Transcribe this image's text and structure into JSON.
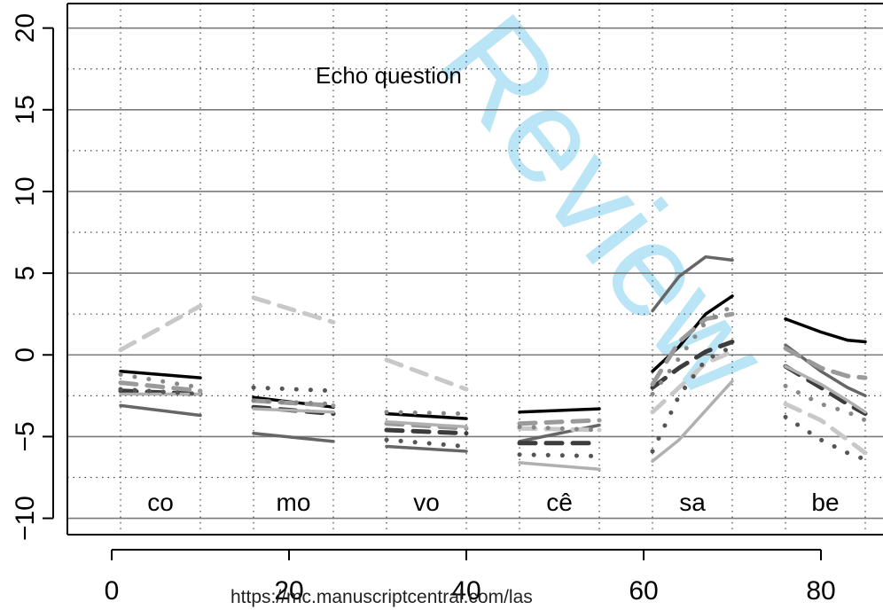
{
  "chart_data": {
    "type": "line",
    "title": "Echo question",
    "xlabel": "",
    "ylabel": "",
    "xlim": [
      -5,
      87
    ],
    "ylim": [
      -11,
      21.5
    ],
    "x_ticks": [
      0,
      20,
      40,
      60,
      80
    ],
    "y_ticks": [
      -10,
      -5,
      0,
      5,
      10,
      15,
      20
    ],
    "grid": true,
    "segment_labels": [
      {
        "text": "co",
        "x": 5.5
      },
      {
        "text": "mo",
        "x": 20.5
      },
      {
        "text": "vo",
        "x": 35.5
      },
      {
        "text": "cê",
        "x": 50.5
      },
      {
        "text": "sa",
        "x": 65.5
      },
      {
        "text": "be",
        "x": 80.5
      }
    ],
    "segment_label_y": -9,
    "segment_dividers_x": [
      1,
      10,
      16,
      25,
      31,
      40,
      46,
      55,
      61,
      70,
      76,
      85
    ],
    "series": [
      {
        "color": "#000000",
        "style": "solid",
        "segments": [
          [
            [
              1,
              -1.0
            ],
            [
              10,
              -1.4
            ]
          ],
          [
            [
              16,
              -2.6
            ],
            [
              25,
              -3.2
            ]
          ],
          [
            [
              31,
              -3.6
            ],
            [
              40,
              -3.9
            ]
          ],
          [
            [
              46,
              -3.5
            ],
            [
              55,
              -3.3
            ]
          ],
          [
            [
              61,
              -1.0
            ],
            [
              64,
              0.5
            ],
            [
              67,
              2.5
            ],
            [
              70,
              3.6
            ]
          ],
          [
            [
              76,
              2.2
            ],
            [
              80,
              1.4
            ],
            [
              83,
              0.9
            ],
            [
              85,
              0.8
            ]
          ]
        ]
      },
      {
        "color": "#666666",
        "style": "solid",
        "segments": [
          [
            [
              1,
              -3.1
            ],
            [
              10,
              -3.7
            ]
          ],
          [
            [
              16,
              -4.8
            ],
            [
              25,
              -5.3
            ]
          ],
          [
            [
              31,
              -5.6
            ],
            [
              40,
              -5.9
            ]
          ],
          [
            [
              46,
              -5.3
            ],
            [
              55,
              -4.3
            ]
          ],
          [
            [
              61,
              2.7
            ],
            [
              64,
              4.8
            ],
            [
              67,
              6.0
            ],
            [
              70,
              5.8
            ]
          ],
          [
            [
              76,
              0.6
            ],
            [
              80,
              -1.0
            ],
            [
              83,
              -2.0
            ],
            [
              85,
              -2.5
            ]
          ]
        ]
      },
      {
        "color": "#c8c8c8",
        "style": "dashed",
        "segments": [
          [
            [
              1,
              0.3
            ],
            [
              10,
              3.0
            ]
          ],
          [
            [
              16,
              3.5
            ],
            [
              25,
              2.0
            ]
          ],
          [
            [
              31,
              -0.3
            ],
            [
              40,
              -2.1
            ]
          ],
          [
            [
              46,
              -4.5
            ],
            [
              55,
              -4.6
            ]
          ],
          [
            [
              61,
              -3.5
            ],
            [
              64,
              -2.0
            ],
            [
              67,
              -0.5
            ],
            [
              70,
              0.2
            ]
          ],
          [
            [
              76,
              -3.0
            ],
            [
              80,
              -4.0
            ],
            [
              83,
              -5.2
            ],
            [
              85,
              -6.0
            ]
          ]
        ]
      },
      {
        "color": "#3c3c3c",
        "style": "dashed",
        "segments": [
          [
            [
              1,
              -2.2
            ],
            [
              10,
              -2.4
            ]
          ],
          [
            [
              16,
              -3.2
            ],
            [
              25,
              -3.6
            ]
          ],
          [
            [
              31,
              -4.6
            ],
            [
              40,
              -4.8
            ]
          ],
          [
            [
              46,
              -5.4
            ],
            [
              55,
              -5.4
            ]
          ],
          [
            [
              61,
              -2.0
            ],
            [
              64,
              -0.8
            ],
            [
              67,
              0.2
            ],
            [
              70,
              0.8
            ]
          ],
          [
            [
              76,
              -0.7
            ],
            [
              80,
              -2.0
            ],
            [
              83,
              -3.0
            ],
            [
              85,
              -3.6
            ]
          ]
        ]
      },
      {
        "color": "#9a9a9a",
        "style": "dashed",
        "segments": [
          [
            [
              1,
              -1.7
            ],
            [
              10,
              -2.2
            ]
          ],
          [
            [
              16,
              -2.8
            ],
            [
              25,
              -3.1
            ]
          ],
          [
            [
              31,
              -4.2
            ],
            [
              40,
              -4.5
            ]
          ],
          [
            [
              46,
              -4.2
            ],
            [
              55,
              -4.0
            ]
          ],
          [
            [
              61,
              -1.8
            ],
            [
              64,
              0.8
            ],
            [
              67,
              2.2
            ],
            [
              70,
              2.5
            ]
          ],
          [
            [
              76,
              0.4
            ],
            [
              80,
              -0.8
            ],
            [
              83,
              -1.3
            ],
            [
              85,
              -1.4
            ]
          ]
        ]
      },
      {
        "color": "#b0b0b0",
        "style": "solid",
        "segments": [
          [
            [
              1,
              -2.4
            ],
            [
              10,
              -2.4
            ]
          ],
          [
            [
              16,
              -3.3
            ],
            [
              25,
              -3.5
            ]
          ],
          [
            [
              31,
              -4.1
            ],
            [
              40,
              -4.4
            ]
          ],
          [
            [
              46,
              -6.6
            ],
            [
              55,
              -7.0
            ]
          ],
          [
            [
              61,
              -6.5
            ],
            [
              64,
              -5.2
            ],
            [
              67,
              -3.4
            ],
            [
              70,
              -1.6
            ]
          ],
          [
            [
              76,
              -0.7
            ],
            [
              80,
              -1.8
            ],
            [
              83,
              -2.8
            ],
            [
              85,
              -3.5
            ]
          ]
        ]
      },
      {
        "color": "#555555",
        "style": "dotted",
        "segments": [
          [
            [
              1,
              -2.1
            ],
            [
              10,
              -2.4
            ]
          ],
          [
            [
              16,
              -2.0
            ],
            [
              25,
              -2.2
            ]
          ],
          [
            [
              31,
              -5.2
            ],
            [
              40,
              -5.6
            ]
          ],
          [
            [
              46,
              -6.1
            ],
            [
              55,
              -6.2
            ]
          ],
          [
            [
              61,
              -5.9
            ],
            [
              64,
              -2.5
            ],
            [
              67,
              -0.3
            ],
            [
              70,
              0.5
            ]
          ],
          [
            [
              76,
              -3.8
            ],
            [
              80,
              -5.2
            ],
            [
              83,
              -6.0
            ],
            [
              85,
              -6.4
            ]
          ]
        ]
      },
      {
        "color": "#888888",
        "style": "dotted",
        "segments": [
          [
            [
              1,
              -1.2
            ],
            [
              10,
              -2.0
            ]
          ],
          [
            [
              16,
              -2.8
            ],
            [
              25,
              -3.0
            ]
          ],
          [
            [
              31,
              -3.5
            ],
            [
              40,
              -3.6
            ]
          ],
          [
            [
              46,
              -4.4
            ],
            [
              55,
              -4.6
            ]
          ],
          [
            [
              61,
              -2.4
            ],
            [
              64,
              -0.2
            ],
            [
              67,
              2.0
            ],
            [
              70,
              3.0
            ]
          ],
          [
            [
              76,
              -1.9
            ],
            [
              80,
              -3.0
            ],
            [
              83,
              -3.5
            ],
            [
              85,
              -4.0
            ]
          ]
        ]
      }
    ]
  },
  "watermark": {
    "url": "https://mc.manuscriptcentral.com/las",
    "diagonal_text": "Review",
    "diagonal_color": "#39b4e6"
  }
}
